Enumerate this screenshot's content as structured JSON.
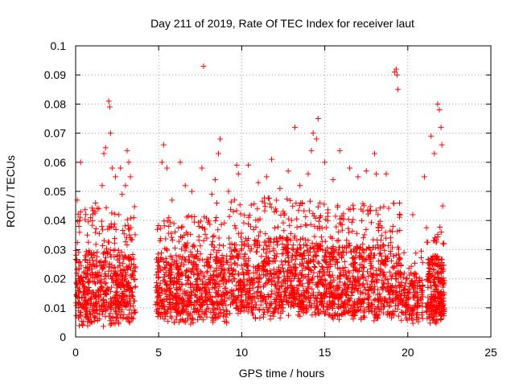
{
  "chart_data": {
    "type": "scatter",
    "title": "Day 211 of 2019, Rate Of TEC Index for receiver laut",
    "xlabel": "GPS time / hours",
    "ylabel": "ROTI / TECUs",
    "xlim": [
      0,
      25
    ],
    "ylim": [
      0,
      0.1
    ],
    "xticks": [
      0,
      5,
      10,
      15,
      20,
      25
    ],
    "xtick_labels": [
      "0",
      "5",
      "10",
      "15",
      "20",
      "25"
    ],
    "yticks": [
      0,
      0.01,
      0.02,
      0.03,
      0.04,
      0.05,
      0.06,
      0.07,
      0.08,
      0.09,
      0.1
    ],
    "ytick_labels": [
      "0",
      "0.01",
      "0.02",
      "0.03",
      "0.04",
      "0.05",
      "0.06",
      "0.07",
      "0.08",
      "0.09",
      "0.1"
    ],
    "grid": true,
    "marker": "+",
    "marker_color": "#ff0000",
    "series": [
      {
        "name": "ROTI",
        "points": [
          [
            0.1,
            0.047
          ],
          [
            0.2,
            0.038
          ],
          [
            0.3,
            0.06
          ],
          [
            0.5,
            0.022
          ],
          [
            0.7,
            0.035
          ],
          [
            0.9,
            0.041
          ],
          [
            1.1,
            0.028
          ],
          [
            1.2,
            0.046
          ],
          [
            1.4,
            0.044
          ],
          [
            1.6,
            0.052
          ],
          [
            1.7,
            0.063
          ],
          [
            1.8,
            0.065
          ],
          [
            2.0,
            0.081
          ],
          [
            2.05,
            0.079
          ],
          [
            2.1,
            0.07
          ],
          [
            2.2,
            0.058
          ],
          [
            2.4,
            0.055
          ],
          [
            2.6,
            0.042
          ],
          [
            2.7,
            0.058
          ],
          [
            2.8,
            0.049
          ],
          [
            3.0,
            0.052
          ],
          [
            3.1,
            0.064
          ],
          [
            3.2,
            0.06
          ],
          [
            3.3,
            0.055
          ],
          [
            3.5,
            0.041
          ],
          [
            5.2,
            0.06
          ],
          [
            5.3,
            0.066
          ],
          [
            5.5,
            0.058
          ],
          [
            5.8,
            0.047
          ],
          [
            6.3,
            0.06
          ],
          [
            6.6,
            0.052
          ],
          [
            7.0,
            0.05
          ],
          [
            7.6,
            0.058
          ],
          [
            7.7,
            0.093
          ],
          [
            8.2,
            0.049
          ],
          [
            8.4,
            0.054
          ],
          [
            8.5,
            0.046
          ],
          [
            8.6,
            0.063
          ],
          [
            8.7,
            0.068
          ],
          [
            9.2,
            0.05
          ],
          [
            9.7,
            0.059
          ],
          [
            9.8,
            0.056
          ],
          [
            10.4,
            0.059
          ],
          [
            11.0,
            0.053
          ],
          [
            11.5,
            0.055
          ],
          [
            11.8,
            0.061
          ],
          [
            12.3,
            0.051
          ],
          [
            12.8,
            0.057
          ],
          [
            13.2,
            0.072
          ],
          [
            13.5,
            0.052
          ],
          [
            14.0,
            0.056
          ],
          [
            14.2,
            0.064
          ],
          [
            14.3,
            0.07
          ],
          [
            14.5,
            0.068
          ],
          [
            14.6,
            0.075
          ],
          [
            15.0,
            0.06
          ],
          [
            15.5,
            0.054
          ],
          [
            15.9,
            0.064
          ],
          [
            16.5,
            0.058
          ],
          [
            17.0,
            0.055
          ],
          [
            17.5,
            0.057
          ],
          [
            18.0,
            0.063
          ],
          [
            18.1,
            0.056
          ],
          [
            18.7,
            0.056
          ],
          [
            19.2,
            0.091
          ],
          [
            19.3,
            0.092
          ],
          [
            19.35,
            0.09
          ],
          [
            19.4,
            0.085
          ],
          [
            19.5,
            0.046
          ],
          [
            20.3,
            0.042
          ],
          [
            21.0,
            0.055
          ],
          [
            21.4,
            0.069
          ],
          [
            21.6,
            0.063
          ],
          [
            21.8,
            0.08
          ],
          [
            21.9,
            0.078
          ],
          [
            22.0,
            0.072
          ],
          [
            22.05,
            0.066
          ],
          [
            22.1,
            0.045
          ]
        ]
      }
    ],
    "clusters": [
      {
        "x": [
          0.0,
          3.6
        ],
        "base": [
          0.003,
          0.012
        ],
        "dense_top": 0.03,
        "sparse_top": 0.045,
        "count": 620
      },
      {
        "x": [
          4.8,
          9.2
        ],
        "base": [
          0.004,
          0.012
        ],
        "dense_top": 0.028,
        "sparse_top": 0.042,
        "count": 700
      },
      {
        "x": [
          9.2,
          15.0
        ],
        "base": [
          0.006,
          0.014
        ],
        "dense_top": 0.034,
        "sparse_top": 0.048,
        "count": 900
      },
      {
        "x": [
          15.0,
          19.6
        ],
        "base": [
          0.005,
          0.012
        ],
        "dense_top": 0.032,
        "sparse_top": 0.046,
        "count": 720
      },
      {
        "x": [
          19.6,
          20.9
        ],
        "base": [
          0.004,
          0.01
        ],
        "dense_top": 0.022,
        "sparse_top": 0.03,
        "count": 150
      },
      {
        "x": [
          21.1,
          22.2
        ],
        "base": [
          0.004,
          0.01
        ],
        "dense_top": 0.028,
        "sparse_top": 0.038,
        "count": 260
      }
    ]
  }
}
